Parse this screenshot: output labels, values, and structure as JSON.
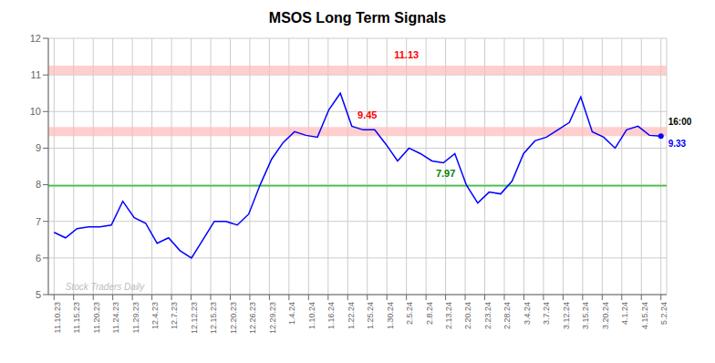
{
  "chart_data": {
    "type": "line",
    "title": "MSOS Long Term Signals",
    "color": "blue",
    "x": [
      0,
      1,
      2,
      3,
      4,
      5,
      6,
      7,
      8,
      9,
      10,
      11,
      12,
      13,
      14,
      15,
      16,
      17,
      18,
      19,
      20,
      21,
      22,
      23,
      24,
      25,
      26,
      27,
      28,
      29,
      30,
      31,
      32,
      33,
      34,
      35,
      36,
      37,
      38,
      39,
      40,
      41,
      42,
      43,
      44,
      45,
      46,
      47,
      48,
      49,
      50,
      51,
      52,
      53
    ],
    "values": [
      6.7,
      6.55,
      6.8,
      6.85,
      6.85,
      6.9,
      7.55,
      7.1,
      6.95,
      6.4,
      6.55,
      6.2,
      6.0,
      6.5,
      7.0,
      7.0,
      6.9,
      7.2,
      8.0,
      8.7,
      9.15,
      9.45,
      9.35,
      9.3,
      10.05,
      10.5,
      9.6,
      9.5,
      9.5,
      9.1,
      8.65,
      9.0,
      8.85,
      8.65,
      8.6,
      8.85,
      8.0,
      7.5,
      7.8,
      7.75,
      8.1,
      8.85,
      9.2,
      9.3,
      9.5,
      9.7,
      10.4,
      9.45,
      9.3,
      9.0,
      9.5,
      9.6,
      9.35,
      9.33
    ],
    "xlim": [
      -0.5,
      53.5
    ],
    "xticks": [
      {
        "value": 0,
        "label": "11.10.23"
      },
      {
        "value": 1.709677,
        "label": "11.15.23"
      },
      {
        "value": 3.419355,
        "label": "11.20.23"
      },
      {
        "value": 5.129032,
        "label": "11.24.23"
      },
      {
        "value": 6.83871,
        "label": "11.29.23"
      },
      {
        "value": 8.548387,
        "label": "12.4.23"
      },
      {
        "value": 10.258065,
        "label": "12.7.23"
      },
      {
        "value": 11.967742,
        "label": "12.12.23"
      },
      {
        "value": 13.677419,
        "label": "12.15.23"
      },
      {
        "value": 15.387097,
        "label": "12.20.23"
      },
      {
        "value": 17.096774,
        "label": "12.26.23"
      },
      {
        "value": 18.806452,
        "label": "12.29.23"
      },
      {
        "value": 20.516129,
        "label": "1.4.24"
      },
      {
        "value": 22.225806,
        "label": "1.10.24"
      },
      {
        "value": 23.935484,
        "label": "1.16.24"
      },
      {
        "value": 25.645161,
        "label": "1.22.24"
      },
      {
        "value": 27.354839,
        "label": "1.25.24"
      },
      {
        "value": 29.064516,
        "label": "1.30.24"
      },
      {
        "value": 30.774194,
        "label": "2.5.24"
      },
      {
        "value": 32.483871,
        "label": "2.8.24"
      },
      {
        "value": 34.193548,
        "label": "2.13.24"
      },
      {
        "value": 35.903226,
        "label": "2.20.24"
      },
      {
        "value": 37.612903,
        "label": "2.23.24"
      },
      {
        "value": 39.322581,
        "label": "2.28.24"
      },
      {
        "value": 41.032258,
        "label": "3.4.24"
      },
      {
        "value": 42.741935,
        "label": "3.7.24"
      },
      {
        "value": 44.451613,
        "label": "3.12.24"
      },
      {
        "value": 46.16129,
        "label": "3.15.24"
      },
      {
        "value": 47.870968,
        "label": "3.20.24"
      },
      {
        "value": 49.580645,
        "label": "4.1.24"
      },
      {
        "value": 51.290323,
        "label": "4.15.24"
      },
      {
        "value": 53,
        "label": "5.2.24"
      }
    ],
    "ylim": [
      5,
      12
    ],
    "yticks": [
      5,
      6,
      7,
      8,
      9,
      10,
      11,
      12
    ],
    "grid": true,
    "reference_lines": [
      {
        "y": 9.45,
        "color": "#ffbbbb"
      },
      {
        "y": 11.13,
        "color": "#ffbbbb"
      },
      {
        "y": 7.97,
        "color": "#33cc33"
      }
    ],
    "annotations": [
      {
        "text": "11.13",
        "x": 30.774194,
        "y": 11.45,
        "color": "red"
      },
      {
        "text": "9.45",
        "x": 27.354839,
        "y": 9.82,
        "color": "red"
      },
      {
        "text": "7.97",
        "x": 34.193548,
        "y": 8.22,
        "color": "green"
      }
    ],
    "end_labels": [
      {
        "text": "16:00",
        "color": "black"
      },
      {
        "text": "9.33",
        "color": "blue"
      }
    ],
    "watermark": {
      "text": "Stock Traders Daily",
      "x": 1,
      "y": 5.12,
      "color": "#aaaaaa"
    }
  }
}
